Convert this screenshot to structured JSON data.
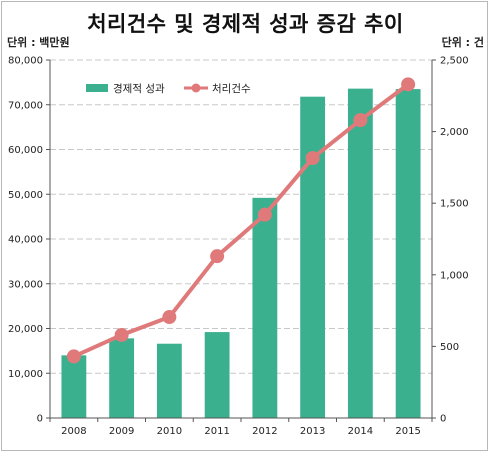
{
  "title": "처리건수 및 경제적 성과 증감 추이",
  "units": {
    "left": "단위 : 백만원",
    "right": "단위 : 건"
  },
  "chart_data": {
    "type": "bar+line",
    "title": "처리건수 및 경제적 성과 증감 추이",
    "categories": [
      "2008",
      "2009",
      "2010",
      "2011",
      "2012",
      "2013",
      "2014",
      "2015"
    ],
    "series": [
      {
        "name": "경제적 성과",
        "type": "bar",
        "axis": "left",
        "color": "#3bb08f",
        "values": [
          14000,
          17800,
          16600,
          19200,
          49200,
          71800,
          73600,
          73500
        ]
      },
      {
        "name": "처리건수",
        "type": "line",
        "axis": "right",
        "color": "#e07a7a",
        "values": [
          430,
          580,
          705,
          1130,
          1420,
          1815,
          2080,
          2330
        ]
      }
    ],
    "y_left": {
      "min": 0,
      "max": 80000,
      "ticks": [
        "0",
        "10,000",
        "20,000",
        "30,000",
        "40,000",
        "50,000",
        "60,000",
        "70,000",
        "80,000"
      ]
    },
    "y_right": {
      "min": 0,
      "max": 2500,
      "ticks": [
        "0",
        "500",
        "1,000",
        "1,500",
        "2,000",
        "2,500"
      ]
    },
    "grid": true,
    "legend": "top-left"
  }
}
